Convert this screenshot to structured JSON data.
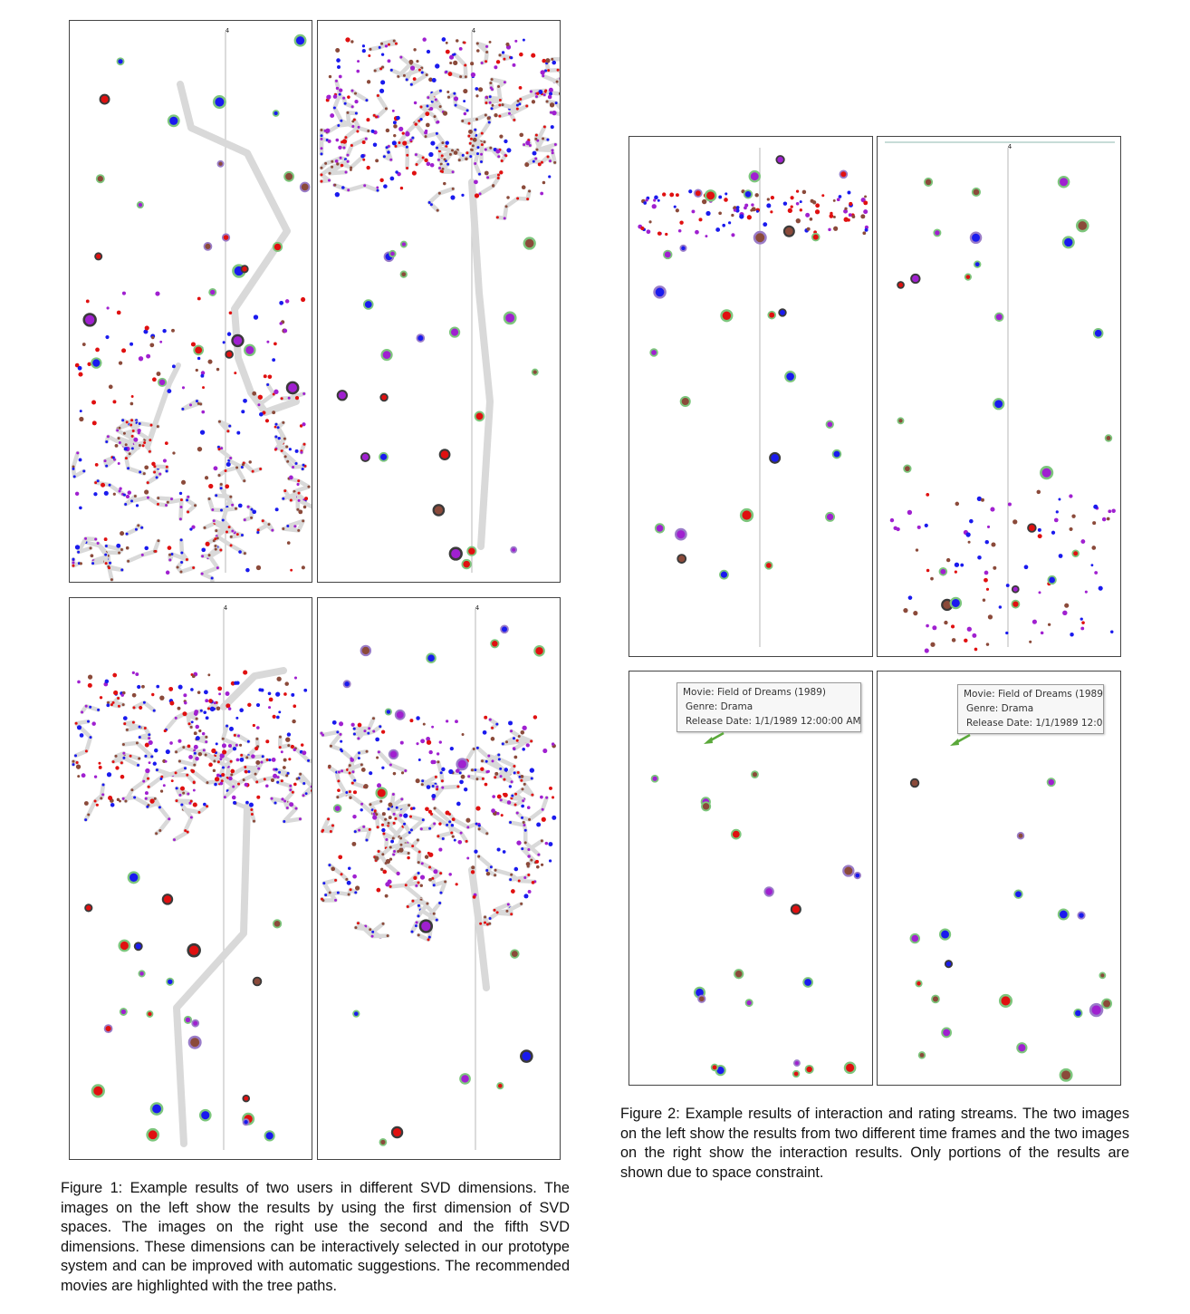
{
  "figure1": {
    "caption": "Figure 1: Example results of two users in different SVD dimensions. The images on the left show the results by using the first dimension of SVD spaces. The images on the right use the second and the fifth SVD dimensions. These dimensions can be interactively selected in our prototype system and can be improved with automatic suggestions. The recommended movies are highlighted with the tree paths.",
    "axis_tick": "4"
  },
  "figure2": {
    "caption": "Figure 2: Example results of interaction and rating streams. The two images on the left show the results from two different time frames and the two images on the right show the interaction results. Only portions of the results are shown due to space constraint.",
    "axis_tick": "4",
    "tooltip_left": {
      "movie": "Movie: Field of Dreams (1989)",
      "genre": "Genre: Drama",
      "release": "Release Date: 1/1/1989 12:00:00 AM"
    },
    "tooltip_right": {
      "movie": "Movie: Field of Dreams (1989)",
      "genre": "Genre: Drama",
      "release": "Release Date: 1/1/1989 12:00:"
    }
  },
  "colors": {
    "red": "#e01010",
    "blue": "#1a1aee",
    "purple": "#a020d0",
    "brown": "#8b4a3a",
    "ring_green": "#7dc67d",
    "ring_dark": "#3a3a3a",
    "path_gray": "#d9d9d9"
  }
}
